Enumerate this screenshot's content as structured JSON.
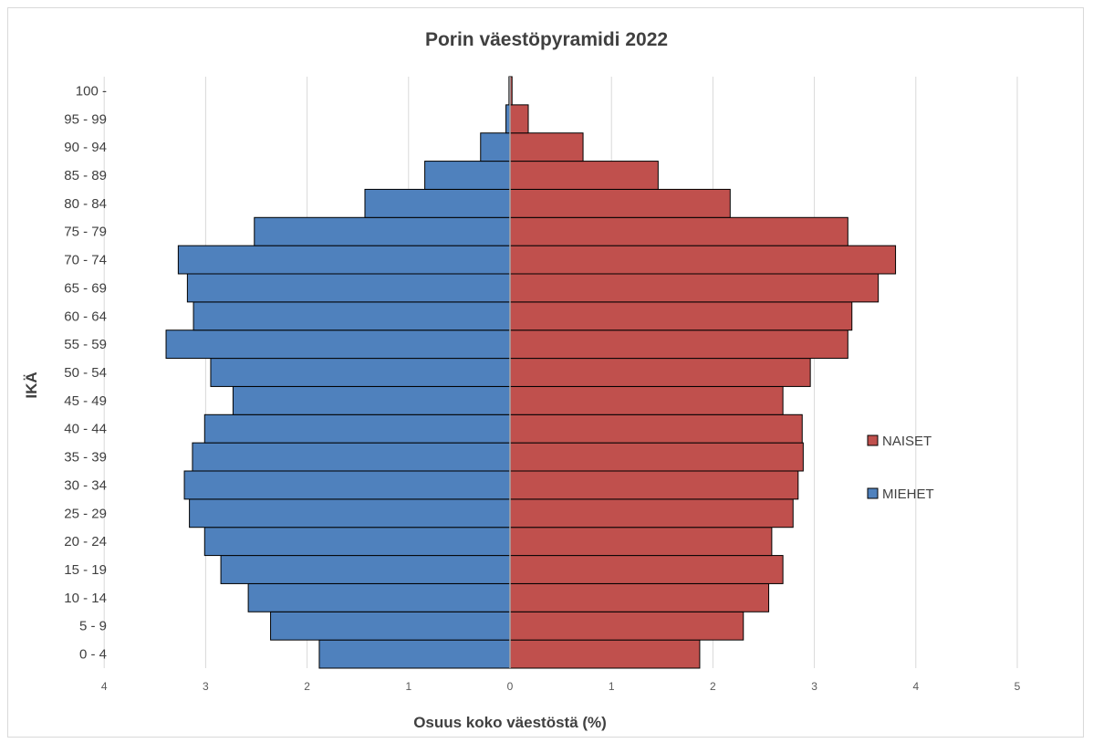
{
  "chart_data": {
    "type": "bar",
    "orientation": "horizontal",
    "title": "Porin väestöpyramidi 2022",
    "xlabel": "Osuus koko väestöstä (%)",
    "ylabel": "IKÄ",
    "categories": [
      "0 - 4",
      "5 - 9",
      "10 - 14",
      "15 - 19",
      "20 - 24",
      "25 - 29",
      "30 - 34",
      "35 - 39",
      "40 - 44",
      "45 - 49",
      "50 - 54",
      "55 - 59",
      "60 - 64",
      "65 - 69",
      "70 - 74",
      "75 - 79",
      "80 - 84",
      "85 - 89",
      "90 - 94",
      "95 - 99",
      "100 -"
    ],
    "series": [
      {
        "name": "MIEHET",
        "color": "#4f81bd",
        "side": "left",
        "values": [
          1.88,
          2.36,
          2.58,
          2.85,
          3.01,
          3.16,
          3.21,
          3.13,
          3.01,
          2.73,
          2.95,
          3.39,
          3.12,
          3.18,
          3.27,
          2.52,
          1.43,
          0.84,
          0.29,
          0.04,
          0.01
        ]
      },
      {
        "name": "NAISET",
        "color": "#c0504d",
        "side": "right",
        "values": [
          1.87,
          2.3,
          2.55,
          2.69,
          2.58,
          2.79,
          2.84,
          2.89,
          2.88,
          2.69,
          2.96,
          3.33,
          3.37,
          3.63,
          3.8,
          3.33,
          2.17,
          1.46,
          0.72,
          0.18,
          0.02
        ]
      }
    ],
    "xticks": [
      "4",
      "3",
      "2",
      "1",
      "0",
      "1",
      "2",
      "3",
      "4",
      "5"
    ],
    "xlim": [
      -4,
      5
    ],
    "grid": true,
    "legend": {
      "position": "right",
      "order": [
        "NAISET",
        "MIEHET"
      ]
    }
  }
}
